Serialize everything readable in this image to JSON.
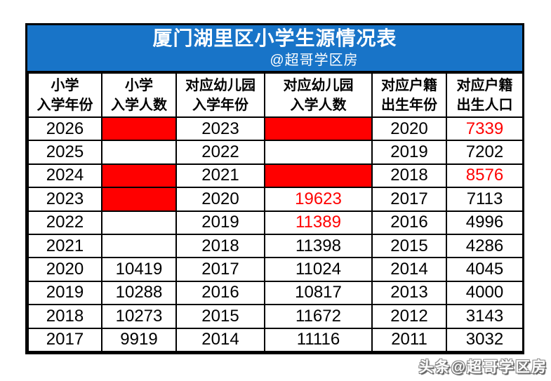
{
  "title": "厦门湖里区小学生源情况表",
  "subtitle": "@超哥学区房",
  "watermark": "头条@超哥学区房",
  "colors": {
    "banner_bg": "#1874c8",
    "banner_text": "#ffffff",
    "highlight_red": "#ff0000",
    "border": "#000000",
    "text": "#000000"
  },
  "table": {
    "headers": [
      {
        "line1": "小学",
        "line2": "入学年份"
      },
      {
        "line1": "小学",
        "line2": "入学人数"
      },
      {
        "line1": "对应幼儿园",
        "line2": "入学年份"
      },
      {
        "line1": "对应幼儿园",
        "line2": "入学人数"
      },
      {
        "line1": "对应户籍",
        "line2": "出生年份"
      },
      {
        "line1": "对应户籍",
        "line2": "出生人口"
      }
    ],
    "rows": [
      {
        "cells": [
          {
            "text": "2026"
          },
          {
            "text": "",
            "fill": true
          },
          {
            "text": "2023"
          },
          {
            "text": "",
            "fill": true
          },
          {
            "text": "2020"
          },
          {
            "text": "7339",
            "red": true
          }
        ]
      },
      {
        "cells": [
          {
            "text": "2025"
          },
          {
            "text": ""
          },
          {
            "text": "2022"
          },
          {
            "text": ""
          },
          {
            "text": "2019"
          },
          {
            "text": "7202"
          }
        ]
      },
      {
        "cells": [
          {
            "text": "2024"
          },
          {
            "text": "",
            "fill": true
          },
          {
            "text": "2021"
          },
          {
            "text": "",
            "fill": true
          },
          {
            "text": "2018"
          },
          {
            "text": "8576",
            "red": true
          }
        ]
      },
      {
        "cells": [
          {
            "text": "2023"
          },
          {
            "text": "",
            "fill": true
          },
          {
            "text": "2020"
          },
          {
            "text": "19623",
            "red": true
          },
          {
            "text": "2017"
          },
          {
            "text": "7113"
          }
        ]
      },
      {
        "cells": [
          {
            "text": "2022"
          },
          {
            "text": ""
          },
          {
            "text": "2019"
          },
          {
            "text": "11389",
            "red": true
          },
          {
            "text": "2016"
          },
          {
            "text": "4996"
          }
        ]
      },
      {
        "cells": [
          {
            "text": "2021"
          },
          {
            "text": ""
          },
          {
            "text": "2018"
          },
          {
            "text": "11398"
          },
          {
            "text": "2015"
          },
          {
            "text": "4286"
          }
        ]
      },
      {
        "cells": [
          {
            "text": "2020"
          },
          {
            "text": "10419"
          },
          {
            "text": "2017"
          },
          {
            "text": "11024"
          },
          {
            "text": "2014"
          },
          {
            "text": "4045"
          }
        ]
      },
      {
        "cells": [
          {
            "text": "2019"
          },
          {
            "text": "10288"
          },
          {
            "text": "2016"
          },
          {
            "text": "10817"
          },
          {
            "text": "2013"
          },
          {
            "text": "4000"
          }
        ]
      },
      {
        "cells": [
          {
            "text": "2018"
          },
          {
            "text": "10273"
          },
          {
            "text": "2015"
          },
          {
            "text": "11672"
          },
          {
            "text": "2012"
          },
          {
            "text": "3143"
          }
        ]
      },
      {
        "cells": [
          {
            "text": "2017"
          },
          {
            "text": "9919"
          },
          {
            "text": "2014"
          },
          {
            "text": "11116"
          },
          {
            "text": "2011"
          },
          {
            "text": "3032"
          }
        ]
      }
    ]
  },
  "chart_data": {
    "type": "table",
    "title": "厦门湖里区小学生源情况表",
    "subtitle": "@超哥学区房",
    "columns": [
      "小学入学年份",
      "小学入学人数",
      "对应幼儿园入学年份",
      "对应幼儿园入学人数",
      "对应户籍出生年份",
      "对应户籍出生人口"
    ],
    "rows": [
      [
        2026,
        null,
        2023,
        null,
        2020,
        7339
      ],
      [
        2025,
        null,
        2022,
        null,
        2019,
        7202
      ],
      [
        2024,
        null,
        2021,
        null,
        2018,
        8576
      ],
      [
        2023,
        null,
        2020,
        19623,
        2017,
        7113
      ],
      [
        2022,
        null,
        2019,
        11389,
        2016,
        4996
      ],
      [
        2021,
        null,
        2018,
        11398,
        2015,
        4286
      ],
      [
        2020,
        10419,
        2017,
        11024,
        2014,
        4045
      ],
      [
        2019,
        10288,
        2016,
        10817,
        2013,
        4000
      ],
      [
        2018,
        10273,
        2015,
        11672,
        2012,
        3143
      ],
      [
        2017,
        9919,
        2014,
        11116,
        2011,
        3032
      ]
    ],
    "red_filled_cells": [
      {
        "row_year": 2026,
        "columns": [
          "小学入学人数",
          "对应幼儿园入学人数"
        ]
      },
      {
        "row_year": 2024,
        "columns": [
          "小学入学人数",
          "对应幼儿园入学人数"
        ]
      },
      {
        "row_year": 2023,
        "columns": [
          "小学入学人数"
        ]
      }
    ],
    "red_text_values": [
      7339,
      8576,
      19623,
      11389
    ]
  }
}
